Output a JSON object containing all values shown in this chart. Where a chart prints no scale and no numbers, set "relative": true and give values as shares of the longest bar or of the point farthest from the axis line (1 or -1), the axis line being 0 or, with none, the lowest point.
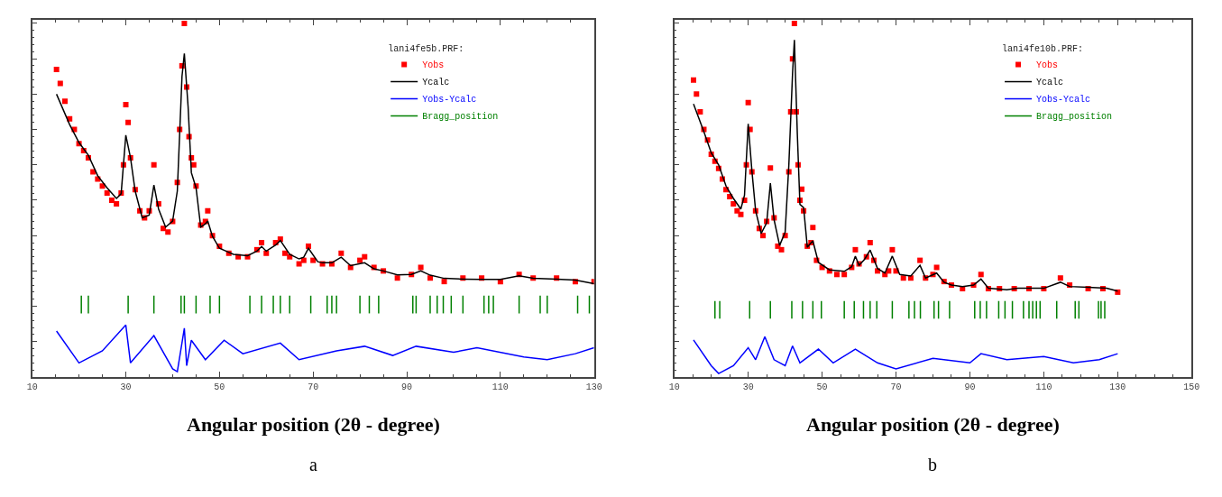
{
  "chart_data": [
    {
      "type": "line",
      "relative": true,
      "xlabel": "Angular position (2θ - degree)",
      "legend_title": "lani4fe5b.PRF:",
      "legend": "top right",
      "annotations": [
        "a"
      ],
      "xlim": [
        10,
        130
      ],
      "xticks": [
        10,
        30,
        50,
        70,
        90,
        110,
        130
      ],
      "series": [
        {
          "name": "Yobs",
          "type": "scatter",
          "marker": "square",
          "color": "#ff0000",
          "x": [
            15.2,
            16,
            17,
            18,
            19,
            20,
            21,
            22,
            23,
            24,
            25,
            26,
            27,
            28,
            29,
            29.5,
            30,
            30.5,
            31,
            32,
            33,
            34,
            35,
            36,
            37,
            38,
            39,
            40,
            41,
            41.5,
            42,
            42.5,
            43,
            43.5,
            44,
            44.5,
            45,
            46,
            47,
            47.5,
            48.5,
            50,
            52,
            54,
            56,
            58,
            59,
            60,
            62,
            63,
            64,
            65,
            67,
            68,
            69,
            70,
            72,
            74,
            76,
            78,
            80,
            81,
            83,
            85,
            88,
            91,
            93,
            95,
            98,
            102,
            106,
            110,
            114,
            117,
            122,
            126,
            130
          ],
          "values": [
            0.87,
            0.83,
            0.78,
            0.73,
            0.7,
            0.66,
            0.64,
            0.62,
            0.58,
            0.56,
            0.54,
            0.52,
            0.5,
            0.49,
            0.52,
            0.6,
            0.77,
            0.72,
            0.62,
            0.53,
            0.47,
            0.45,
            0.47,
            0.6,
            0.49,
            0.42,
            0.41,
            0.44,
            0.55,
            0.7,
            0.88,
            1.0,
            0.82,
            0.68,
            0.62,
            0.6,
            0.54,
            0.43,
            0.44,
            0.47,
            0.4,
            0.37,
            0.35,
            0.34,
            0.34,
            0.36,
            0.38,
            0.35,
            0.38,
            0.39,
            0.35,
            0.34,
            0.32,
            0.33,
            0.37,
            0.33,
            0.32,
            0.32,
            0.35,
            0.31,
            0.33,
            0.34,
            0.31,
            0.3,
            0.28,
            0.29,
            0.31,
            0.28,
            0.27,
            0.28,
            0.28,
            0.27,
            0.29,
            0.28,
            0.28,
            0.27,
            0.27
          ]
        },
        {
          "name": "Ycalc",
          "color": "#000000",
          "x": [
            15.2,
            18,
            20,
            22,
            24,
            26,
            28,
            29,
            30,
            31,
            32,
            33.5,
            35,
            36,
            37,
            38.5,
            40,
            41,
            42,
            42.5,
            43.3,
            44,
            45,
            46,
            47,
            47.5,
            48.5,
            50,
            53,
            56,
            58,
            59,
            60,
            62,
            63,
            65,
            67,
            68,
            69,
            71,
            72,
            74,
            76,
            78,
            81,
            83,
            85,
            88,
            91,
            93,
            95,
            98,
            102,
            106,
            110,
            114,
            117,
            122,
            126,
            130
          ],
          "values": [
            0.8,
            0.714,
            0.663,
            0.627,
            0.569,
            0.535,
            0.505,
            0.518,
            0.684,
            0.62,
            0.526,
            0.45,
            0.458,
            0.543,
            0.475,
            0.424,
            0.441,
            0.526,
            0.85,
            0.915,
            0.765,
            0.578,
            0.535,
            0.424,
            0.433,
            0.441,
            0.398,
            0.364,
            0.347,
            0.343,
            0.356,
            0.369,
            0.356,
            0.373,
            0.386,
            0.347,
            0.334,
            0.339,
            0.364,
            0.326,
            0.323,
            0.323,
            0.339,
            0.315,
            0.323,
            0.306,
            0.3,
            0.289,
            0.29,
            0.3,
            0.288,
            0.279,
            0.277,
            0.276,
            0.276,
            0.286,
            0.279,
            0.277,
            0.274,
            0.264
          ]
        },
        {
          "name": "Yobs-Ycalc",
          "color": "#0000ff",
          "x": [
            15.2,
            20,
            25,
            30,
            31,
            36,
            40,
            41,
            42.5,
            43,
            44,
            47,
            51,
            55,
            63,
            67,
            75,
            81,
            87,
            92,
            100,
            105,
            115,
            120,
            126,
            130
          ],
          "values": [
            0.13,
            0.04,
            0.074,
            0.147,
            0.04,
            0.117,
            0.023,
            0.015,
            0.138,
            0.032,
            0.104,
            0.049,
            0.104,
            0.066,
            0.096,
            0.049,
            0.074,
            0.087,
            0.061,
            0.087,
            0.07,
            0.083,
            0.057,
            0.049,
            0.066,
            0.083
          ]
        },
        {
          "name": "Bragg_position",
          "color": "#008000",
          "x": [
            20.5,
            20.5,
            null,
            22,
            22,
            null,
            30.5,
            30.5,
            null,
            36,
            36,
            null,
            41.8,
            41.8,
            null,
            42.5,
            42.5,
            null,
            45,
            45,
            null,
            48,
            48,
            null,
            50,
            50,
            null,
            56.5,
            56.5,
            null,
            59,
            59,
            null,
            61.5,
            61.5,
            null,
            63,
            63,
            null,
            65,
            65,
            null,
            69.5,
            69.5,
            null,
            73,
            73,
            null,
            74,
            74,
            null,
            75,
            75,
            null,
            80,
            80,
            null,
            82,
            82,
            null,
            84,
            84,
            null,
            91.3,
            91.3,
            null,
            92,
            92,
            null,
            95,
            95,
            null,
            96.5,
            96.5,
            null,
            97.8,
            97.8,
            null,
            99.5,
            99.5,
            null,
            102,
            102,
            null,
            106.5,
            106.5,
            null,
            107.5,
            107.5,
            null,
            108.5,
            108.5,
            null,
            114,
            114,
            null,
            118.5,
            118.5,
            null,
            120,
            120,
            null,
            126.5,
            126.5,
            null,
            129,
            129,
            null
          ],
          "values": [
            0.18,
            0.23,
            null,
            0.18,
            0.23,
            null,
            0.18,
            0.23,
            null,
            0.18,
            0.23,
            null,
            0.18,
            0.23,
            null,
            0.18,
            0.23,
            null,
            0.18,
            0.23,
            null,
            0.18,
            0.23,
            null,
            0.18,
            0.23,
            null,
            0.18,
            0.23,
            null,
            0.18,
            0.23,
            null,
            0.18,
            0.23,
            null,
            0.18,
            0.23,
            null,
            0.18,
            0.23,
            null,
            0.18,
            0.23,
            null,
            0.18,
            0.23,
            null,
            0.18,
            0.23,
            null,
            0.18,
            0.23,
            null,
            0.18,
            0.23,
            null,
            0.18,
            0.23,
            null,
            0.18,
            0.23,
            null,
            0.18,
            0.23,
            null,
            0.18,
            0.23,
            null,
            0.18,
            0.23,
            null,
            0.18,
            0.23,
            null,
            0.18,
            0.23,
            null,
            0.18,
            0.23,
            null,
            0.18,
            0.23,
            null,
            0.18,
            0.23,
            null,
            0.18,
            0.23,
            null,
            0.18,
            0.23,
            null,
            0.18,
            0.23,
            null,
            0.18,
            0.23,
            null,
            0.18,
            0.23,
            null,
            0.18,
            0.23,
            null,
            0.18,
            0.23,
            null
          ]
        }
      ]
    },
    {
      "type": "line",
      "relative": true,
      "xlabel": "Angular position (2θ - degree)",
      "legend_title": "lani4fe10b.PRF:",
      "legend": "top right",
      "annotations": [
        "b"
      ],
      "xlim": [
        10,
        150
      ],
      "xticks": [
        10,
        30,
        50,
        70,
        90,
        110,
        130,
        150
      ],
      "series": [
        {
          "name": "Yobs",
          "type": "scatter",
          "marker": "square",
          "color": "#ff0000",
          "x": [
            15.2,
            16,
            17,
            18,
            19,
            20,
            21,
            22,
            23,
            24,
            25,
            26,
            27,
            28,
            29,
            29.5,
            30,
            30.5,
            31,
            32,
            33,
            34,
            35,
            36,
            37,
            38,
            39,
            40,
            41,
            41.5,
            42,
            42.5,
            43,
            43.5,
            44,
            44.5,
            45,
            46,
            47,
            47.5,
            48.5,
            50,
            52,
            54,
            56,
            58,
            59,
            60,
            62,
            63,
            64,
            65,
            67,
            68,
            69,
            70,
            72,
            74,
            76.5,
            78,
            80,
            81,
            83,
            85,
            88,
            91,
            93,
            95,
            98,
            102,
            106,
            110,
            114.5,
            117,
            122,
            126,
            130
          ],
          "values": [
            0.84,
            0.8,
            0.75,
            0.7,
            0.67,
            0.63,
            0.61,
            0.59,
            0.56,
            0.53,
            0.51,
            0.49,
            0.47,
            0.46,
            0.5,
            0.6,
            0.776,
            0.7,
            0.58,
            0.47,
            0.42,
            0.4,
            0.44,
            0.591,
            0.45,
            0.37,
            0.36,
            0.4,
            0.58,
            0.75,
            0.9,
            1.0,
            0.75,
            0.6,
            0.5,
            0.531,
            0.47,
            0.37,
            0.38,
            0.423,
            0.33,
            0.31,
            0.3,
            0.29,
            0.29,
            0.31,
            0.36,
            0.32,
            0.34,
            0.38,
            0.33,
            0.3,
            0.29,
            0.3,
            0.36,
            0.3,
            0.28,
            0.28,
            0.33,
            0.28,
            0.29,
            0.31,
            0.27,
            0.26,
            0.25,
            0.26,
            0.29,
            0.25,
            0.25,
            0.25,
            0.25,
            0.25,
            0.28,
            0.26,
            0.25,
            0.25,
            0.24
          ]
        },
        {
          "name": "Ycalc",
          "color": "#000000",
          "x": [
            15.2,
            18,
            20,
            22,
            24,
            26,
            28,
            29,
            30,
            31,
            32,
            33.5,
            35,
            36,
            37,
            38.5,
            40,
            41,
            42,
            42.5,
            43.3,
            44,
            45,
            46,
            47.5,
            49,
            52,
            56,
            58,
            59,
            60,
            61.5,
            63,
            65,
            67,
            69,
            71,
            74,
            76.5,
            78,
            81,
            83,
            85,
            88,
            91,
            93,
            95,
            100,
            103,
            106,
            110,
            114.5,
            117,
            122,
            127,
            130
          ],
          "values": [
            0.772,
            0.694,
            0.634,
            0.6,
            0.54,
            0.505,
            0.475,
            0.514,
            0.716,
            0.583,
            0.471,
            0.406,
            0.436,
            0.548,
            0.445,
            0.372,
            0.41,
            0.6,
            0.858,
            0.953,
            0.686,
            0.488,
            0.479,
            0.367,
            0.385,
            0.324,
            0.303,
            0.299,
            0.312,
            0.342,
            0.316,
            0.333,
            0.359,
            0.307,
            0.294,
            0.342,
            0.29,
            0.286,
            0.316,
            0.28,
            0.294,
            0.268,
            0.26,
            0.256,
            0.26,
            0.277,
            0.251,
            0.247,
            0.251,
            0.251,
            0.251,
            0.268,
            0.256,
            0.254,
            0.251,
            0.243
          ]
        },
        {
          "name": "Yobs-Ycalc",
          "color": "#0000ff",
          "x": [
            15.2,
            20,
            22,
            26,
            30,
            32,
            34.5,
            37,
            40,
            42,
            44,
            49,
            53,
            59,
            65,
            70,
            80,
            90,
            93,
            100,
            110,
            118,
            125,
            130
          ],
          "values": [
            0.105,
            0.032,
            0.01,
            0.032,
            0.083,
            0.049,
            0.114,
            0.049,
            0.032,
            0.088,
            0.04,
            0.079,
            0.04,
            0.079,
            0.04,
            0.023,
            0.053,
            0.04,
            0.066,
            0.049,
            0.058,
            0.04,
            0.049,
            0.066
          ]
        },
        {
          "name": "Bragg_position",
          "color": "#008000",
          "x": [
            21,
            21,
            null,
            22.3,
            22.3,
            null,
            30.4,
            30.4,
            null,
            36,
            36,
            null,
            41.8,
            41.8,
            null,
            44.7,
            44.7,
            null,
            47.5,
            47.5,
            null,
            49.8,
            49.8,
            null,
            56,
            56,
            null,
            58.7,
            58.7,
            null,
            61.2,
            61.2,
            null,
            63,
            63,
            null,
            64.8,
            64.8,
            null,
            69,
            69,
            null,
            73.5,
            73.5,
            null,
            75,
            75,
            null,
            76.6,
            76.6,
            null,
            80.3,
            80.3,
            null,
            81.5,
            81.5,
            null,
            84.5,
            84.5,
            null,
            91.3,
            91.3,
            null,
            92.8,
            92.8,
            null,
            94.5,
            94.5,
            null,
            97.8,
            97.8,
            null,
            99.5,
            99.5,
            null,
            101.5,
            101.5,
            null,
            104.5,
            104.5,
            null,
            106,
            106,
            null,
            107,
            107,
            null,
            108,
            108,
            null,
            109,
            109,
            null,
            113.5,
            113.5,
            null,
            118.5,
            118.5,
            null,
            119.5,
            119.5,
            null,
            124.8,
            124.8,
            null,
            125.5,
            125.5,
            null,
            126.5,
            126.5,
            null
          ],
          "values": [
            0.165,
            0.215,
            null,
            0.165,
            0.215,
            null,
            0.165,
            0.215,
            null,
            0.165,
            0.215,
            null,
            0.165,
            0.215,
            null,
            0.165,
            0.215,
            null,
            0.165,
            0.215,
            null,
            0.165,
            0.215,
            null,
            0.165,
            0.215,
            null,
            0.165,
            0.215,
            null,
            0.165,
            0.215,
            null,
            0.165,
            0.215,
            null,
            0.165,
            0.215,
            null,
            0.165,
            0.215,
            null,
            0.165,
            0.215,
            null,
            0.165,
            0.215,
            null,
            0.165,
            0.215,
            null,
            0.165,
            0.215,
            null,
            0.165,
            0.215,
            null,
            0.165,
            0.215,
            null,
            0.165,
            0.215,
            null,
            0.165,
            0.215,
            null,
            0.165,
            0.215,
            null,
            0.165,
            0.215,
            null,
            0.165,
            0.215,
            null,
            0.165,
            0.215,
            null,
            0.165,
            0.215,
            null,
            0.165,
            0.215,
            null,
            0.165,
            0.215,
            null,
            0.165,
            0.215,
            null,
            0.165,
            0.215,
            null,
            0.165,
            0.215,
            null,
            0.165,
            0.215,
            null,
            0.165,
            0.215,
            null,
            0.165,
            0.215,
            null,
            0.165,
            0.215,
            null,
            0.165,
            0.215,
            null
          ]
        }
      ]
    }
  ]
}
